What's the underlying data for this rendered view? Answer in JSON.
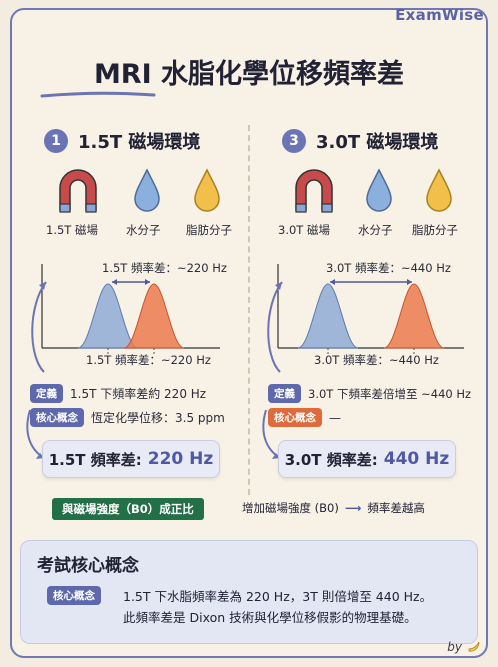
{
  "brand": "ExamWise",
  "title": "MRI 水脂化學位移頻率差",
  "colors": {
    "accent": "#6b74b5",
    "fat_peak": "#e96a3d",
    "water_peak": "#7e9ccd",
    "green_bar": "#236f47"
  },
  "left": {
    "num": "1",
    "title": "1.5T 磁場環境",
    "icons": [
      {
        "icon": "magnet-icon",
        "label": "1.5T 磁場"
      },
      {
        "icon": "water-drop-icon",
        "label": "水分子"
      },
      {
        "icon": "fat-drop-icon",
        "label": "脂肪分子"
      }
    ],
    "graph_top": "1.5T 頻率差：~220 Hz",
    "graph_bottom": "1.5T 頻率差：~220 Hz",
    "def_tag": "定義",
    "def_text": "1.5T 下頻率差約 220 Hz",
    "concept_tag": "核心概念",
    "concept_text": "恆定化學位移：3.5 ppm",
    "result_label": "1.5T 頻率差:",
    "result_value": "220 Hz"
  },
  "right": {
    "num": "3",
    "title": "3.0T 磁場環境",
    "icons": [
      {
        "icon": "magnet-icon",
        "label": "3.0T 磁場"
      },
      {
        "icon": "water-drop-icon",
        "label": "水分子"
      },
      {
        "icon": "fat-drop-icon",
        "label": "脂肪分子"
      }
    ],
    "graph_top": "3.0T 頻率差：~440 Hz",
    "graph_bottom": "3.0T 頻率差：~440 Hz",
    "def_tag": "定義",
    "def_text": "3.0T 下頻率差倍增至 ~440 Hz",
    "concept_tag": "核心概念",
    "concept_text": "—",
    "result_label": "3.0T 頻率差:",
    "result_value": "440 Hz"
  },
  "proportional": "與磁場強度（B0）成正比",
  "increase_text": "增加磁場強度 (B0)",
  "increase_result": "頻率差越高",
  "core": {
    "title": "考試核心概念",
    "tag": "核心概念",
    "line1": "1.5T 下水脂頻率差為 220 Hz，3T 則倍增至 440 Hz。",
    "line2": "此頻率差是 Dixon 技術與化學位移假影的物理基礎。"
  },
  "byline": "by"
}
